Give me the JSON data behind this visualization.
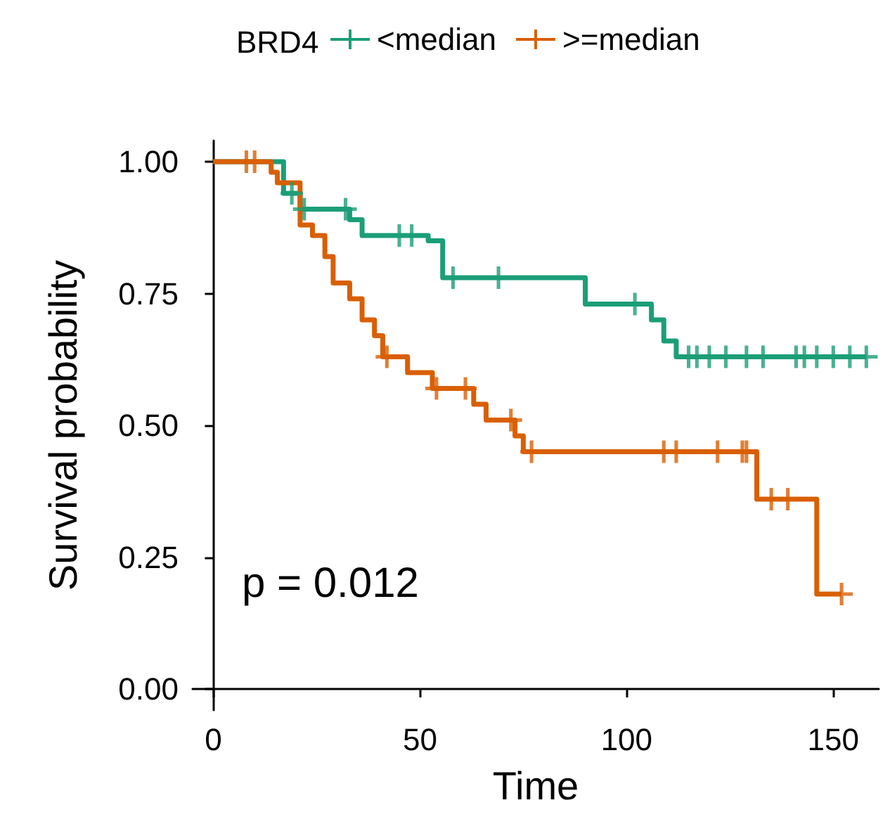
{
  "chart_data": {
    "type": "step",
    "xlabel": "Time",
    "ylabel": "Survival probability",
    "legend_title": "BRD4",
    "legend": "top",
    "grid": false,
    "annotations": [
      "p = 0.012"
    ],
    "xlim": [
      -5,
      161
    ],
    "xticks": [
      0,
      50,
      100,
      150
    ],
    "ylim": [
      -0.04,
      1.04
    ],
    "yticks": [
      {
        "value": 0,
        "label": "0.00"
      },
      {
        "value": 0.25,
        "label": "0.25"
      },
      {
        "value": 0.5,
        "label": "0.50"
      },
      {
        "value": 0.75,
        "label": "0.75"
      },
      {
        "value": 1,
        "label": "1.00"
      }
    ],
    "series": [
      {
        "name": "<median",
        "color": "#1b9e77",
        "x": [
          0,
          17,
          21,
          33,
          36,
          52,
          55.5,
          90,
          106,
          109,
          112,
          158
        ],
        "values": [
          1,
          0.94,
          0.91,
          0.89,
          0.86,
          0.85,
          0.78,
          0.73,
          0.7,
          0.66,
          0.63,
          0.63
        ]
      },
      {
        "name": ">=median",
        "color": "#d95f02",
        "x": [
          0,
          14,
          15.5,
          21,
          24,
          27,
          29,
          33,
          36,
          39,
          41,
          47,
          53,
          63,
          66,
          73,
          75,
          131.5,
          146,
          152
        ],
        "values": [
          1,
          0.98,
          0.96,
          0.88,
          0.86,
          0.82,
          0.77,
          0.74,
          0.7,
          0.67,
          0.63,
          0.6,
          0.57,
          0.54,
          0.51,
          0.48,
          0.45,
          0.36,
          0.18,
          0.18
        ]
      },
      {
        "type": "scatter",
        "marker": "cross",
        "color": "#1b9e77",
        "x": [
          19,
          22,
          32,
          45,
          48,
          58,
          69,
          102,
          115,
          117,
          120,
          124,
          129,
          133,
          141,
          143,
          146,
          150,
          154,
          158
        ],
        "values": [
          0.94,
          0.91,
          0.91,
          0.86,
          0.86,
          0.78,
          0.78,
          0.73,
          0.63,
          0.63,
          0.63,
          0.63,
          0.63,
          0.63,
          0.63,
          0.63,
          0.63,
          0.63,
          0.63,
          0.63
        ]
      },
      {
        "type": "scatter",
        "marker": "cross",
        "color": "#d95f02",
        "x": [
          8,
          10,
          42,
          54,
          61,
          72,
          77,
          109,
          112,
          122,
          128,
          129,
          135,
          139,
          152
        ],
        "values": [
          1,
          1,
          0.63,
          0.57,
          0.57,
          0.51,
          0.45,
          0.45,
          0.45,
          0.45,
          0.45,
          0.45,
          0.36,
          0.36,
          0.18
        ]
      }
    ]
  }
}
